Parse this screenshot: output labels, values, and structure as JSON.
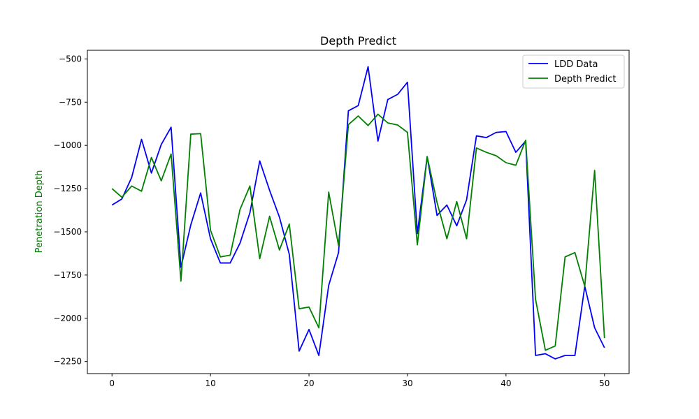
{
  "chart_data": {
    "type": "line",
    "title": "Depth Predict",
    "xlabel": "",
    "ylabel": "Penetration Depth",
    "ylabel_color": "#008000",
    "xlim": [
      -2.5,
      52.5
    ],
    "ylim": [
      -2320,
      -450
    ],
    "xticks": [
      0,
      10,
      20,
      30,
      40,
      50
    ],
    "yticks": [
      -500,
      -750,
      -1000,
      -1250,
      -1500,
      -1750,
      -2000,
      -2250
    ],
    "xtick_labels": [
      "0",
      "10",
      "20",
      "30",
      "40",
      "50"
    ],
    "ytick_labels": [
      "−500",
      "−750",
      "−1000",
      "−1250",
      "−1500",
      "−1750",
      "−2000",
      "−2250"
    ],
    "grid": false,
    "legend_position": "top-right",
    "x": [
      0,
      1,
      2,
      3,
      4,
      5,
      6,
      7,
      8,
      9,
      10,
      11,
      12,
      13,
      14,
      15,
      16,
      17,
      18,
      19,
      20,
      21,
      22,
      23,
      24,
      25,
      26,
      27,
      28,
      29,
      30,
      31,
      32,
      33,
      34,
      35,
      36,
      37,
      38,
      39,
      40,
      41,
      42,
      43,
      44,
      45,
      46,
      47,
      48,
      49,
      50
    ],
    "series": [
      {
        "name": "LDD Data",
        "color": "#0000ff",
        "values": [
          -1345,
          -1310,
          -1185,
          -965,
          -1160,
          -995,
          -895,
          -1705,
          -1460,
          -1275,
          -1540,
          -1680,
          -1680,
          -1565,
          -1390,
          -1090,
          -1260,
          -1415,
          -1630,
          -2190,
          -2065,
          -2215,
          -1810,
          -1620,
          -800,
          -770,
          -545,
          -975,
          -735,
          -705,
          -635,
          -1510,
          -1065,
          -1405,
          -1345,
          -1465,
          -1315,
          -945,
          -955,
          -925,
          -920,
          -1040,
          -975,
          -2215,
          -2205,
          -2235,
          -2215,
          -2215,
          -1815,
          -2055,
          -2170
        ]
      },
      {
        "name": "Depth Predict",
        "color": "#008000",
        "values": [
          -1250,
          -1300,
          -1235,
          -1265,
          -1070,
          -1205,
          -1050,
          -1785,
          -935,
          -932,
          -1490,
          -1645,
          -1635,
          -1370,
          -1235,
          -1655,
          -1410,
          -1605,
          -1455,
          -1945,
          -1935,
          -2055,
          -1270,
          -1580,
          -880,
          -830,
          -885,
          -820,
          -870,
          -882,
          -925,
          -1575,
          -1065,
          -1330,
          -1540,
          -1325,
          -1540,
          -1015,
          -1040,
          -1060,
          -1100,
          -1115,
          -970,
          -1890,
          -2185,
          -2160,
          -1645,
          -1620,
          -1815,
          -1145,
          -2115
        ]
      }
    ]
  }
}
